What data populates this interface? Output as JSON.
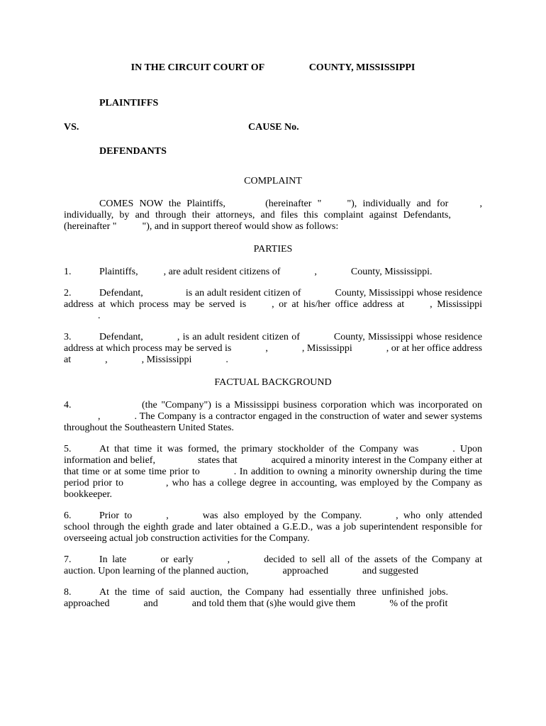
{
  "header": {
    "court_prefix": "IN THE CIRCUIT COURT OF",
    "court_suffix": "COUNTY, MISSISSIPPI"
  },
  "caption": {
    "plaintiffs": "PLAINTIFFS",
    "vs": "VS.",
    "cause": "CAUSE No.",
    "defendants": "DEFENDANTS"
  },
  "titles": {
    "complaint": "COMPLAINT",
    "parties": "PARTIES",
    "factual": "FACTUAL BACKGROUND"
  },
  "intro": {
    "line1a": "COMES NOW the Plaintiffs,",
    "line1b": "(hereinafter \"",
    "line1c": "\"), individually and for",
    "line1d": ",",
    "line2": "individually, by and through their attorneys, and files this complaint against Defendants,",
    "line3a": "(hereinafter \"",
    "line3b": "\"), and in support thereof would show as follows:"
  },
  "para1": {
    "num": "1.",
    "a": "Plaintiffs,",
    "b": ", are adult resident citizens of",
    "c": ",",
    "d": "County, Mississippi."
  },
  "para2": {
    "num": "2.",
    "a": "Defendant,",
    "b": "is an adult resident citizen of",
    "c": "County, Mississippi whose residence address at which process may be served is",
    "d": ", or at his/her office address at",
    "e": ",",
    "f": "Mississippi",
    "g": "."
  },
  "para3": {
    "num": "3.",
    "a": "Defendant,",
    "b": ", is an adult resident citizen of",
    "c": "County, Mississippi whose residence address at which process may be served is",
    "d": ",",
    "e": ", Mississippi",
    "f": ", or at her office address at",
    "g": ",",
    "h": ", Mississippi",
    "i": "."
  },
  "para4": {
    "num": "4.",
    "a": "(the \"Company\") is a Mississippi business corporation which was incorporated on",
    "b": ",",
    "c": ". The Company is a contractor engaged in the construction of water and sewer systems throughout the Southeastern United States."
  },
  "para5": {
    "num": "5.",
    "a": "At that time it was formed, the primary stockholder of the Company was",
    "b": ". Upon information and belief,",
    "c": "states that",
    "d": "acquired a minority interest in the Company either at that time or at some time prior to",
    "e": ". In addition to owning a minority ownership during the time period prior to",
    "f": ", who has a college degree in accounting, was employed by the Company as bookkeeper."
  },
  "para6": {
    "num": "6.",
    "a": "Prior to",
    "b": ",",
    "c": "was also employed by the Company.",
    "d": ", who only attended school through the eighth grade and later obtained a G.E.D., was a job superintendent responsible for overseeing actual job construction activities for the Company."
  },
  "para7": {
    "num": "7.",
    "a": "In late",
    "b": "or early",
    "c": ",",
    "d": "decided to sell all of the assets of the Company at auction. Upon learning of the planned auction,",
    "e": "approached",
    "f": "and suggested"
  },
  "para8": {
    "num": "8.",
    "a": "At the time of said auction, the Company had essentially three unfinished jobs.",
    "b": "approached",
    "c": "and",
    "d": "and told them that (s)he would give them",
    "e": "% of the profit"
  }
}
